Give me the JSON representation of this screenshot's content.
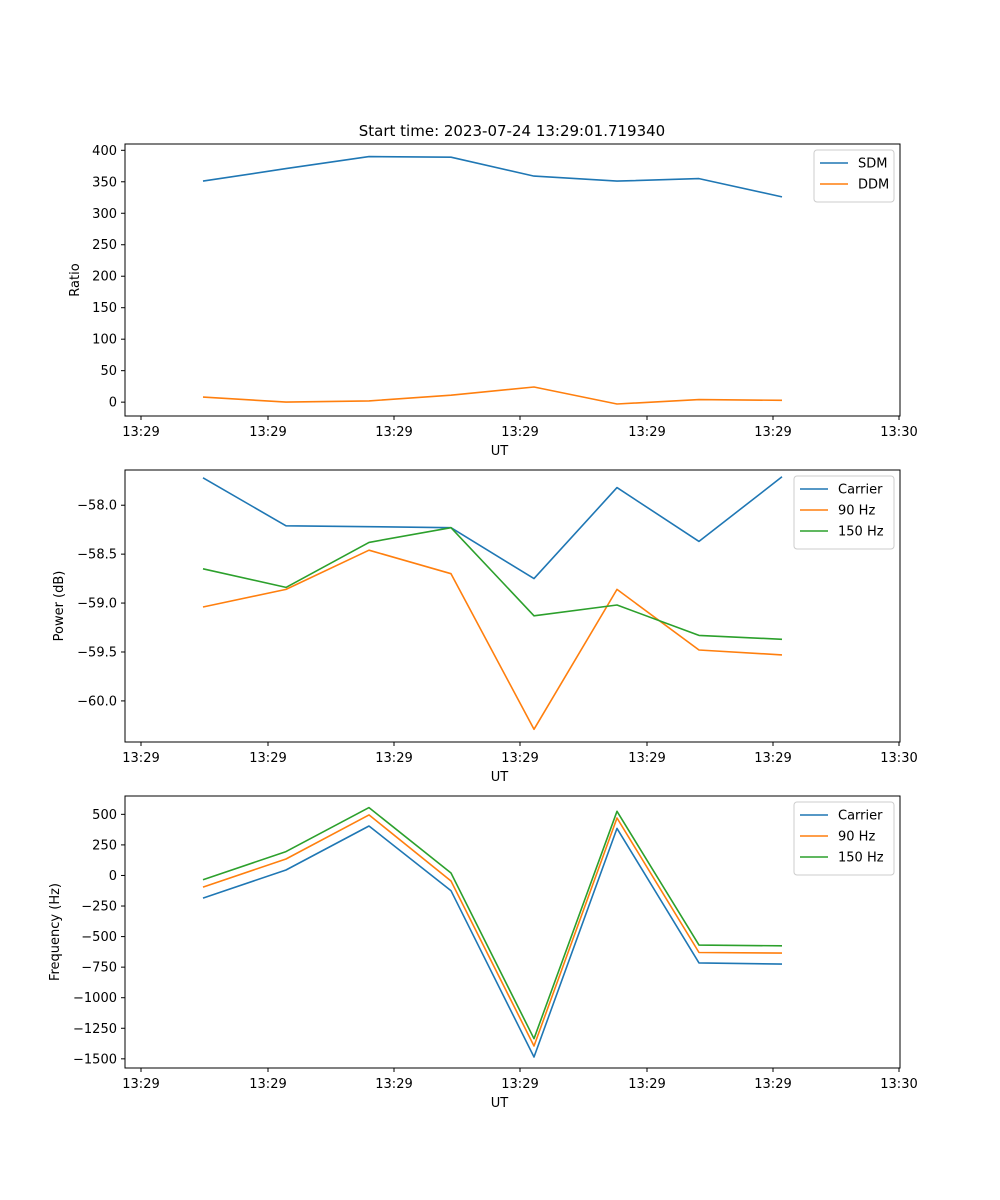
{
  "figure": {
    "title": "Start time: 2023-07-24 13:29:01.719340"
  },
  "chart_data": [
    {
      "type": "line",
      "xlabel": "UT",
      "ylabel": "Ratio",
      "xticks": [
        "13:29",
        "13:29",
        "13:29",
        "13:29",
        "13:29",
        "13:29",
        "13:30"
      ],
      "ylim": [
        -22,
        410
      ],
      "yticks": [
        "0",
        "50",
        "100",
        "150",
        "200",
        "250",
        "300",
        "350",
        "400"
      ],
      "ytick_values": [
        0,
        50,
        100,
        150,
        200,
        250,
        300,
        350,
        400
      ],
      "legend_position": "top-right",
      "series": [
        {
          "name": "SDM",
          "color": "#1f77b4",
          "values": [
            351,
            371,
            390,
            389,
            359,
            351,
            355,
            326
          ]
        },
        {
          "name": "DDM",
          "color": "#ff7f0e",
          "values": [
            8,
            0,
            2,
            11,
            24,
            -3,
            4,
            3
          ]
        }
      ]
    },
    {
      "type": "line",
      "xlabel": "UT",
      "ylabel": "Power (dB)",
      "xticks": [
        "13:29",
        "13:29",
        "13:29",
        "13:29",
        "13:29",
        "13:29",
        "13:30"
      ],
      "ylim": [
        -60.42,
        -57.64
      ],
      "yticks": [
        "−58.0",
        "−58.5",
        "−59.0",
        "−59.5",
        "−60.0"
      ],
      "ytick_values": [
        -58.0,
        -58.5,
        -59.0,
        -59.5,
        -60.0
      ],
      "legend_position": "top-right",
      "series": [
        {
          "name": "Carrier",
          "color": "#1f77b4",
          "values": [
            -57.72,
            -58.21,
            -58.22,
            -58.23,
            -58.75,
            -57.82,
            -58.37,
            -57.71
          ]
        },
        {
          "name": "90 Hz",
          "color": "#ff7f0e",
          "values": [
            -59.04,
            -58.86,
            -58.46,
            -58.7,
            -60.29,
            -58.86,
            -59.48,
            -59.53
          ]
        },
        {
          "name": "150 Hz",
          "color": "#2ca02c",
          "values": [
            -58.65,
            -58.84,
            -58.38,
            -58.23,
            -59.13,
            -59.02,
            -59.33,
            -59.37
          ]
        }
      ]
    },
    {
      "type": "line",
      "xlabel": "UT",
      "ylabel": "Frequency (Hz)",
      "xticks": [
        "13:29",
        "13:29",
        "13:29",
        "13:29",
        "13:29",
        "13:29",
        "13:30"
      ],
      "ylim": [
        -1575,
        650
      ],
      "yticks": [
        "500",
        "250",
        "0",
        "−250",
        "−500",
        "−750",
        "−1000",
        "−1250",
        "−1500"
      ],
      "ytick_values": [
        500,
        250,
        0,
        -250,
        -500,
        -750,
        -1000,
        -1250,
        -1500
      ],
      "legend_position": "top-right",
      "series": [
        {
          "name": "Carrier",
          "color": "#1f77b4",
          "values": [
            -185,
            45,
            405,
            -125,
            -1485,
            385,
            -715,
            -725
          ]
        },
        {
          "name": "90 Hz",
          "color": "#ff7f0e",
          "values": [
            -95,
            135,
            495,
            -45,
            -1395,
            470,
            -630,
            -635
          ]
        },
        {
          "name": "150 Hz",
          "color": "#2ca02c",
          "values": [
            -35,
            195,
            555,
            20,
            -1335,
            525,
            -570,
            -575
          ]
        }
      ]
    }
  ]
}
